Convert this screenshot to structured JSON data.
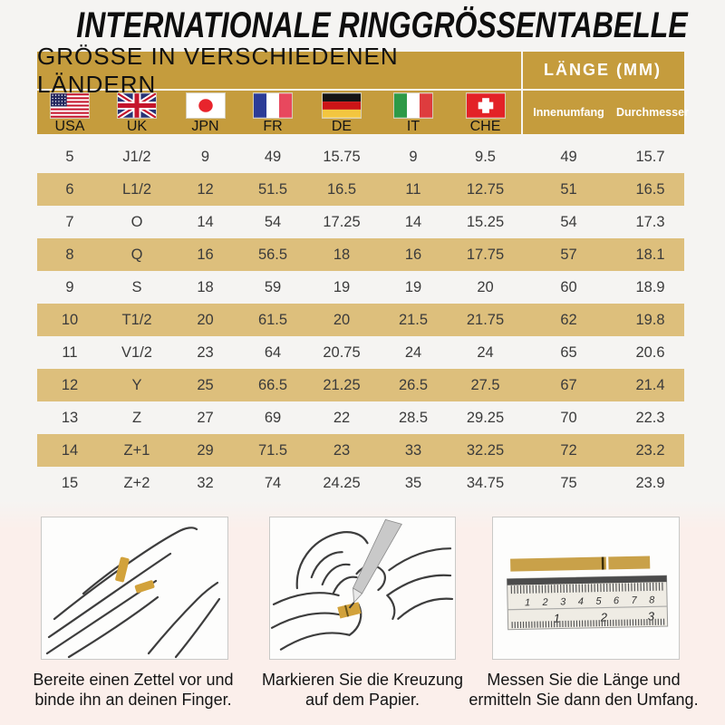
{
  "title": "INTERNATIONALE RINGGRÖSSENTABELLE",
  "colors": {
    "gold_header": "#C59C3D",
    "gold_row": "#DDBF7C",
    "page_bg": "#F5F4F2",
    "bottom_bg": "#FBEFEB",
    "header_text_white": "#FFFFFF",
    "table_text": "#3B3B3B"
  },
  "table": {
    "header_left": "GRÖSSE IN VERSCHIEDENEN LÄNDERN",
    "header_right": "LÄNGE (MM)",
    "length_subcolumns": [
      "Innenumfang",
      "Durchmesser"
    ],
    "countries": [
      "USA",
      "UK",
      "JPN",
      "FR",
      "DE",
      "IT",
      "CHE"
    ]
  },
  "chart_data": {
    "type": "table",
    "title": "Internationale Ringgrössentabelle",
    "column_groups": [
      "Grösse in verschiedenen Ländern",
      "Länge (mm)"
    ],
    "columns": [
      "USA",
      "UK",
      "JPN",
      "FR",
      "DE",
      "IT",
      "CHE",
      "Innenumfang",
      "Durchmesser"
    ],
    "rows": [
      [
        "5",
        "J1/2",
        "9",
        "49",
        "15.75",
        "9",
        "9.5",
        "49",
        "15.7"
      ],
      [
        "6",
        "L1/2",
        "12",
        "51.5",
        "16.5",
        "11",
        "12.75",
        "51",
        "16.5"
      ],
      [
        "7",
        "O",
        "14",
        "54",
        "17.25",
        "14",
        "15.25",
        "54",
        "17.3"
      ],
      [
        "8",
        "Q",
        "16",
        "56.5",
        "18",
        "16",
        "17.75",
        "57",
        "18.1"
      ],
      [
        "9",
        "S",
        "18",
        "59",
        "19",
        "19",
        "20",
        "60",
        "18.9"
      ],
      [
        "10",
        "T1/2",
        "20",
        "61.5",
        "20",
        "21.5",
        "21.75",
        "62",
        "19.8"
      ],
      [
        "11",
        "V1/2",
        "23",
        "64",
        "20.75",
        "24",
        "24",
        "65",
        "20.6"
      ],
      [
        "12",
        "Y",
        "25",
        "66.5",
        "21.25",
        "26.5",
        "27.5",
        "67",
        "21.4"
      ],
      [
        "13",
        "Z",
        "27",
        "69",
        "22",
        "28.5",
        "29.25",
        "70",
        "22.3"
      ],
      [
        "14",
        "Z+1",
        "29",
        "71.5",
        "23",
        "33",
        "32.25",
        "72",
        "23.2"
      ],
      [
        "15",
        "Z+2",
        "32",
        "74",
        "24.25",
        "35",
        "34.75",
        "75",
        "23.9"
      ]
    ]
  },
  "instructions": [
    {
      "caption": "Bereite einen Zettel vor und binde ihn an deinen Finger."
    },
    {
      "caption": "Markieren Sie die Kreuzung auf dem Papier."
    },
    {
      "caption": "Messen Sie die Länge und ermitteln Sie dann den Umfang."
    }
  ],
  "ruler": {
    "top_scale": [
      "1",
      "2",
      "3",
      "4",
      "5",
      "6",
      "7",
      "8"
    ],
    "bottom_scale": [
      "1",
      "2",
      "3"
    ]
  }
}
